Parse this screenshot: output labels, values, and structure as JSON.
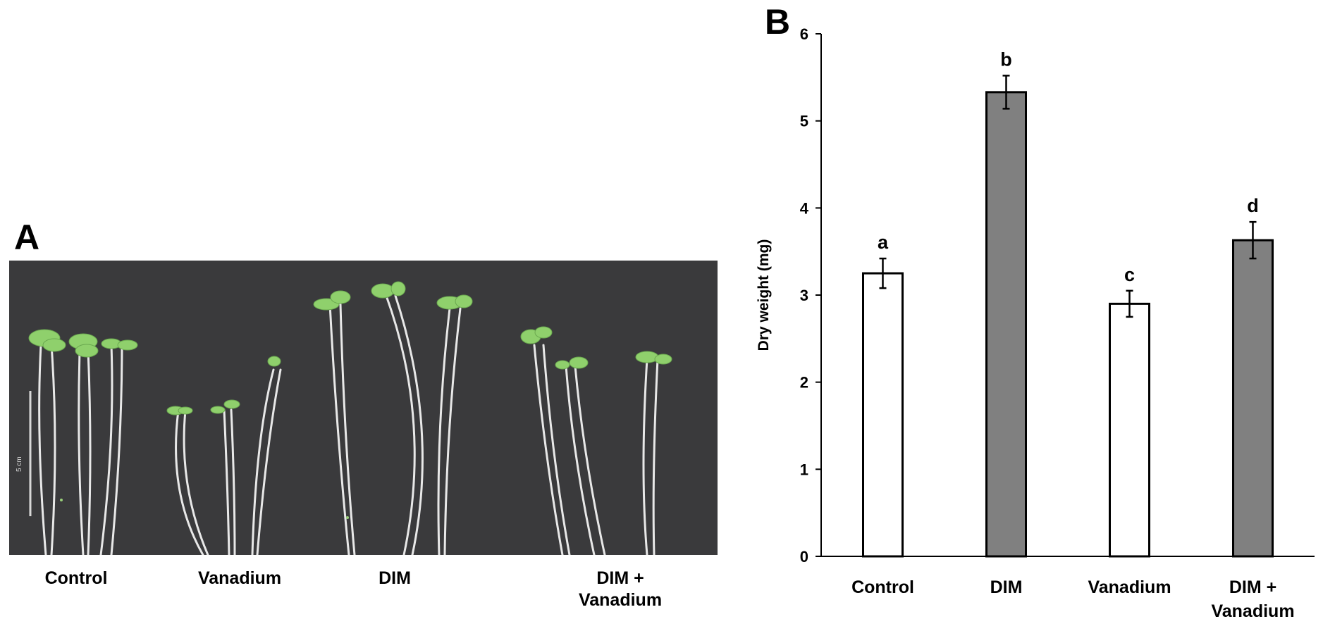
{
  "panel_a": {
    "letter": "A",
    "scale_bar_label": "5 cm",
    "groups": [
      "Control",
      "Vanadium",
      "DIM",
      "DIM +\nVanadium"
    ]
  },
  "panel_b": {
    "letter": "B"
  },
  "chart_data": {
    "type": "bar",
    "categories": [
      "Control",
      "DIM",
      "Vanadium",
      "DIM +\nVanadium"
    ],
    "values": [
      3.25,
      5.33,
      2.9,
      3.63
    ],
    "errors": [
      0.17,
      0.19,
      0.15,
      0.21
    ],
    "significance_letters": [
      "a",
      "b",
      "c",
      "d"
    ],
    "bar_colors": [
      "#ffffff",
      "#808080",
      "#ffffff",
      "#808080"
    ],
    "xlabel": "",
    "ylabel": "Dry weight (mg)",
    "ylim": [
      0,
      6
    ],
    "yticks": [
      0,
      1,
      2,
      3,
      4,
      5,
      6
    ],
    "grid": false
  }
}
